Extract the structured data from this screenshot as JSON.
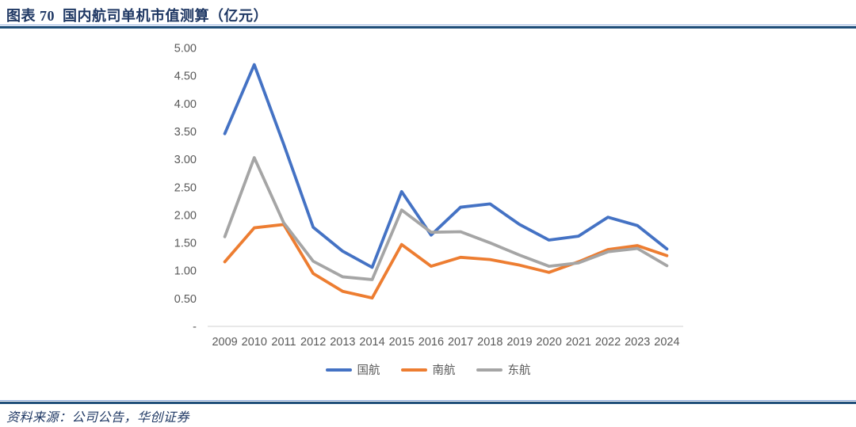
{
  "header": {
    "title": "图表 70  国内航司单机市值测算（亿元）"
  },
  "footer": {
    "source": "资料来源：公司公告，华创证券"
  },
  "colors": {
    "title_navy": "#1F3864",
    "rule_dark": "#1F4E79",
    "rule_light": "#8EAADB",
    "axis_text": "#595959",
    "axis_line": "#D9D9D9",
    "series_blue": "#4472C4",
    "series_orange": "#ED7D31",
    "series_gray": "#A5A5A5"
  },
  "chart_data": {
    "type": "line",
    "title": "国内航司单机市值测算（亿元）",
    "categories": [
      "2009",
      "2010",
      "2011",
      "2012",
      "2013",
      "2014",
      "2015",
      "2016",
      "2017",
      "2018",
      "2019",
      "2020",
      "2021",
      "2022",
      "2023",
      "2024"
    ],
    "series": [
      {
        "name": "国航",
        "color": "#4472C4",
        "values": [
          3.46,
          4.7,
          3.27,
          1.78,
          1.35,
          1.06,
          2.42,
          1.64,
          2.14,
          2.2,
          1.83,
          1.55,
          1.62,
          1.96,
          1.81,
          1.39
        ]
      },
      {
        "name": "南航",
        "color": "#ED7D31",
        "values": [
          1.16,
          1.77,
          1.83,
          0.95,
          0.63,
          0.51,
          1.47,
          1.08,
          1.24,
          1.2,
          1.1,
          0.97,
          1.16,
          1.38,
          1.45,
          1.27
        ]
      },
      {
        "name": "东航",
        "color": "#A5A5A5",
        "values": [
          1.61,
          3.03,
          1.86,
          1.17,
          0.89,
          0.84,
          2.09,
          1.69,
          1.7,
          1.5,
          1.28,
          1.08,
          1.14,
          1.34,
          1.4,
          1.09
        ]
      }
    ],
    "ylim": [
      0,
      5
    ],
    "ytick_step": 0.5,
    "ytick_labels": [
      "-",
      "0.50",
      "1.00",
      "1.50",
      "2.00",
      "2.50",
      "3.00",
      "3.50",
      "4.00",
      "4.50",
      "5.00"
    ],
    "grid": false,
    "legend_position": "bottom"
  }
}
